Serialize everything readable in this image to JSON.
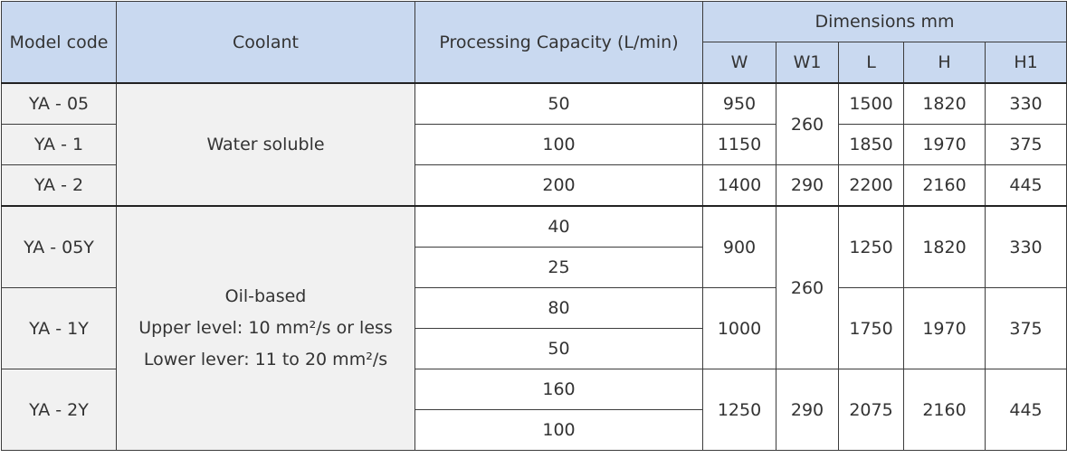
{
  "headers": {
    "model_code": "Model code",
    "coolant": "Coolant",
    "capacity": "Processing Capacity (L/min)",
    "dimensions": "Dimensions mm",
    "w": "W",
    "w1": "W1",
    "l": "L",
    "h": "H",
    "h1": "H1"
  },
  "water_group": {
    "coolant": "Water soluble",
    "shared_w1": "260",
    "rows": [
      {
        "model": "YA - 05",
        "capacity": "50",
        "w": "950",
        "l": "1500",
        "h": "1820",
        "h1": "330"
      },
      {
        "model": "YA - 1",
        "capacity": "100",
        "w": "1150",
        "l": "1850",
        "h": "1970",
        "h1": "375"
      },
      {
        "model": "YA - 2",
        "capacity": "200",
        "w": "1400",
        "w1": "290",
        "l": "2200",
        "h": "2160",
        "h1": "445"
      }
    ]
  },
  "oil_group": {
    "coolant_lines": [
      "Oil-based",
      "Upper level: 10 mm²/s or less",
      "Lower lever: 11 to 20 mm²/s"
    ],
    "shared_w1": "260",
    "models": [
      {
        "model": "YA - 05Y",
        "capacities": [
          "40",
          "25"
        ],
        "w": "900",
        "l": "1250",
        "h": "1820",
        "h1": "330"
      },
      {
        "model": "YA - 1Y",
        "capacities": [
          "80",
          "50"
        ],
        "w": "1000",
        "l": "1750",
        "h": "1970",
        "h1": "375"
      },
      {
        "model": "YA - 2Y",
        "capacities": [
          "160",
          "100"
        ],
        "w": "1250",
        "w1": "290",
        "l": "2075",
        "h": "2160",
        "h1": "445"
      }
    ]
  }
}
